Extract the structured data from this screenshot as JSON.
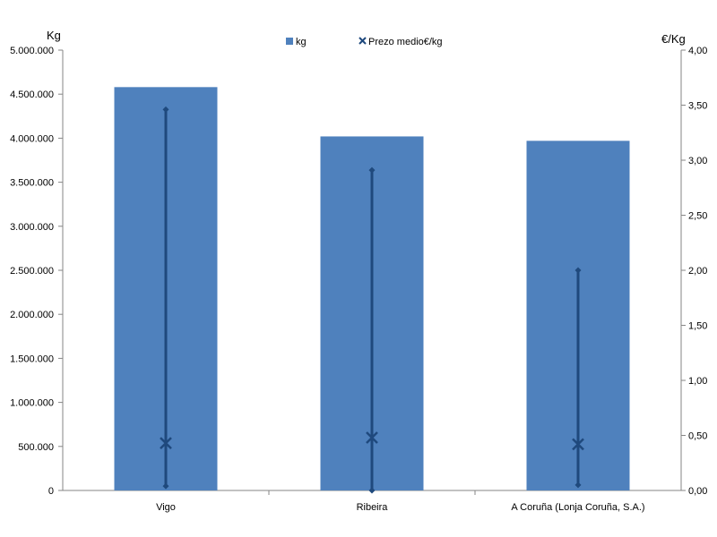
{
  "chart_data": {
    "type": "bar",
    "categories": [
      "Vigo",
      "Ribeira",
      "A Coruña (Lonja Coruña, S.A.)"
    ],
    "y_left": {
      "label": "Kg",
      "ylim": [
        0,
        5000000
      ],
      "ticks": [
        "0",
        "500.000",
        "1.000.000",
        "1.500.000",
        "2.000.000",
        "2.500.000",
        "3.000.000",
        "3.500.000",
        "4.000.000",
        "4.500.000",
        "5.000.000"
      ]
    },
    "y_right": {
      "label": "€/Kg",
      "ylim": [
        0,
        4
      ],
      "ticks": [
        "0,00",
        "0,50",
        "1,00",
        "1,50",
        "2,00",
        "2,50",
        "3,00",
        "3,50",
        "4,00"
      ]
    },
    "series": [
      {
        "name": "kg",
        "type": "bar",
        "axis": "left",
        "color": "#4f81bd",
        "values": [
          4580000,
          4020000,
          3970000
        ]
      },
      {
        "name": "Prezo medio€/kg",
        "type": "marker",
        "marker": "x",
        "axis": "right",
        "color": "#1f497d",
        "values": [
          0.43,
          0.48,
          0.42
        ],
        "range_low": [
          0.04,
          0.0,
          0.05
        ],
        "range_high": [
          3.46,
          2.91,
          2.0
        ]
      }
    ],
    "legend": [
      "kg",
      "Prezo medio€/kg"
    ],
    "legend_position": "top",
    "grid": false
  }
}
